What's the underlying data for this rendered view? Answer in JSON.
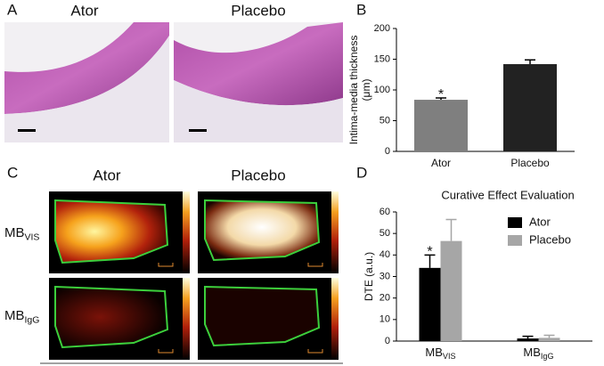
{
  "panels": {
    "A": {
      "label": "A",
      "titles": [
        "Ator",
        "Placebo"
      ]
    },
    "C": {
      "label": "C",
      "titles": [
        "Ator",
        "Placebo"
      ],
      "rows": [
        {
          "text": "MB",
          "sub": "VIS"
        },
        {
          "text": "MB",
          "sub": "IgG"
        }
      ]
    }
  },
  "chart_data": [
    {
      "type": "bar",
      "panel_label": "B",
      "ylabel": [
        "Intima-media thickness",
        "(μm)"
      ],
      "categories": [
        "Ator",
        "Placebo"
      ],
      "values": [
        84,
        142
      ],
      "errors": [
        3,
        7
      ],
      "colors": [
        "#7f7f7f",
        "#222222"
      ],
      "annotations": [
        "*"
      ],
      "ylim": [
        0,
        200
      ],
      "yticks": [
        0,
        50,
        100,
        150,
        200
      ]
    },
    {
      "type": "grouped-bar",
      "panel_label": "D",
      "title": "Curative Effect Evaluation",
      "ylabel": "DTE (a.u.)",
      "categories": [
        {
          "text": "MB",
          "sub": "VIS"
        },
        {
          "text": "MB",
          "sub": "IgG"
        }
      ],
      "series": [
        {
          "name": "Ator",
          "color": "#000000",
          "values": [
            34,
            1.2
          ],
          "errors": [
            6,
            1
          ]
        },
        {
          "name": "Placebo",
          "color": "#a6a6a6",
          "values": [
            46.5,
            1.5
          ],
          "errors": [
            10,
            1.2
          ]
        }
      ],
      "annotations": [
        "*"
      ],
      "legend": "upper right",
      "ylim": [
        0,
        60
      ],
      "yticks": [
        0,
        10,
        20,
        30,
        40,
        50,
        60
      ]
    }
  ]
}
